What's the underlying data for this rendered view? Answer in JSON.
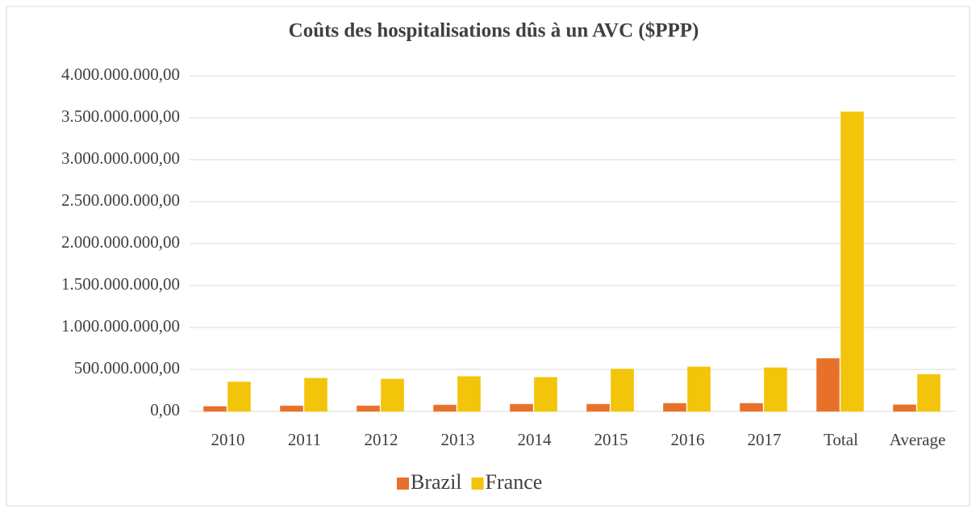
{
  "chart_data": {
    "type": "bar",
    "title": "Coûts des hospitalisations dûs à un AVC ($PPP)",
    "categories": [
      "2010",
      "2011",
      "2012",
      "2013",
      "2014",
      "2015",
      "2016",
      "2017",
      "Total",
      "Average"
    ],
    "series": [
      {
        "name": "Brazil",
        "color": "#e8712a",
        "values": [
          58000000,
          65000000,
          65000000,
          75000000,
          85000000,
          85000000,
          95000000,
          95000000,
          630000000,
          78000000
        ]
      },
      {
        "name": "France",
        "color": "#f2c40a",
        "values": [
          350000000,
          395000000,
          385000000,
          415000000,
          405000000,
          505000000,
          530000000,
          520000000,
          3570000000,
          440000000
        ]
      }
    ],
    "ylim": [
      0,
      4000000000
    ],
    "yticks": [
      {
        "value": 0,
        "label": "0,00"
      },
      {
        "value": 500000000,
        "label": "500.000.000,00"
      },
      {
        "value": 1000000000,
        "label": "1.000.000.000,00"
      },
      {
        "value": 1500000000,
        "label": "1.500.000.000,00"
      },
      {
        "value": 2000000000,
        "label": "2.000.000.000,00"
      },
      {
        "value": 2500000000,
        "label": "2.500.000.000,00"
      },
      {
        "value": 3000000000,
        "label": "3.000.000.000,00"
      },
      {
        "value": 3500000000,
        "label": "3.500.000.000,00"
      },
      {
        "value": 4000000000,
        "label": "4.000.000.000,00"
      }
    ],
    "grid": true,
    "legend": "bottom"
  }
}
